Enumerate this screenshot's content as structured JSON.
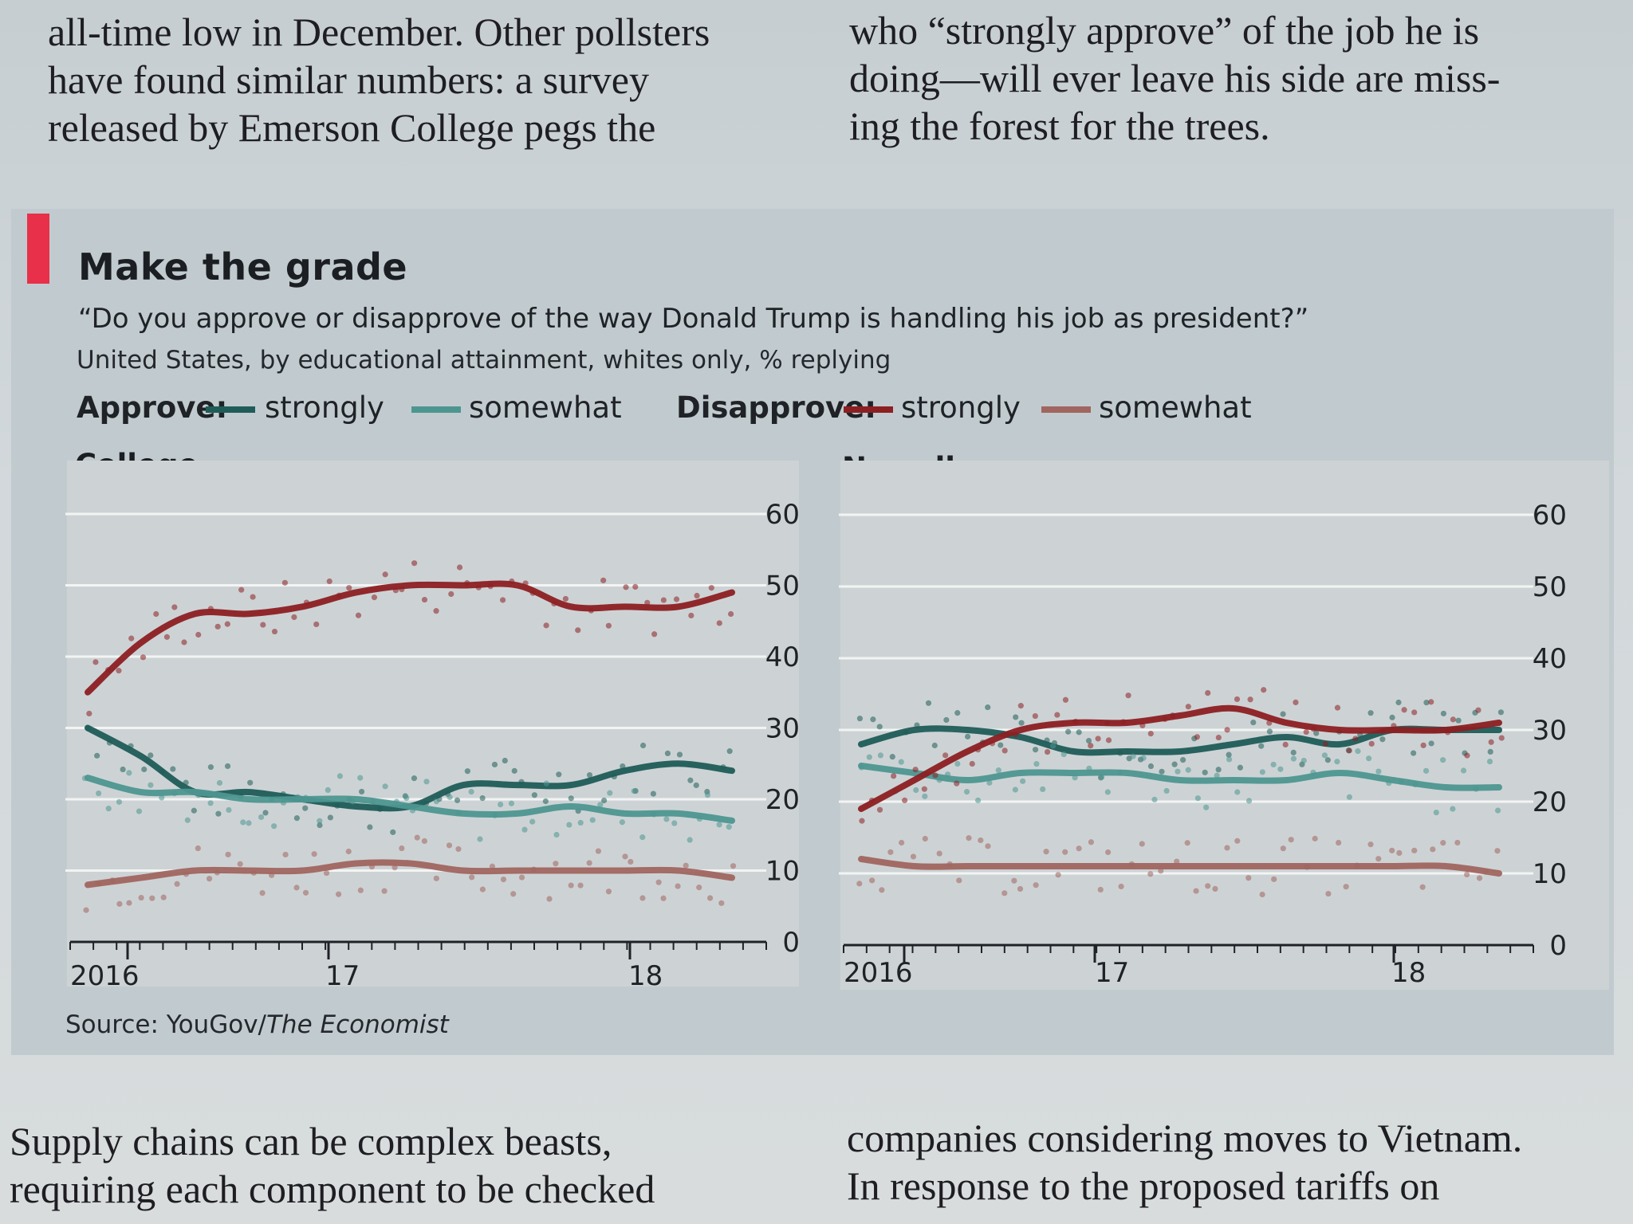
{
  "article": {
    "top_left": [
      "all-time low in December. Other pollsters",
      "have found similar numbers: a survey",
      "released by Emerson College pegs the"
    ],
    "top_right": [
      "who “strongly approve” of the job he is",
      "doing—will ever leave his side are miss-",
      "ing the forest for the trees."
    ],
    "bottom_left": [
      "Supply chains can be complex beasts,",
      "requiring each component to be checked"
    ],
    "bottom_right": [
      "companies considering moves to Vietnam.",
      "In response to the proposed tariffs on"
    ]
  },
  "figure": {
    "title": "Make the grade",
    "subtitle": "“Do you approve or disapprove of the way Donald Trump is handling his job as president?”",
    "note": "United States, by educational attainment, whites only, % replying",
    "legend": {
      "approve_label": "Approve:",
      "disapprove_label": "Disapprove:",
      "strongly": "strongly",
      "somewhat": "somewhat"
    },
    "source_prefix": "Source: YouGov/",
    "source_italic": "The Economist"
  },
  "colors": {
    "approve_strongly": "#1f5c57",
    "approve_somewhat": "#4d9690",
    "disapprove_strongly": "#8c1f22",
    "disapprove_somewhat": "#a0655f",
    "accent_bar": "#e8304a"
  },
  "chart_data": [
    {
      "type": "line",
      "panel": "College",
      "x_ticks": [
        "2016",
        "17",
        "18"
      ],
      "y_ticks": [
        0,
        10,
        20,
        30,
        40,
        50,
        60
      ],
      "ylim": [
        0,
        60
      ],
      "x": [
        2016.0,
        2016.2,
        2016.4,
        2016.6,
        2016.8,
        2017.0,
        2017.2,
        2017.4,
        2017.6,
        2017.8,
        2018.0,
        2018.2,
        2018.4
      ],
      "series": [
        {
          "name": "Approve strongly",
          "values": [
            30,
            26,
            21,
            21,
            20,
            19,
            19,
            22,
            22,
            22,
            24,
            25,
            24
          ]
        },
        {
          "name": "Approve somewhat",
          "values": [
            23,
            21,
            21,
            20,
            20,
            20,
            19,
            18,
            18,
            19,
            18,
            18,
            17
          ]
        },
        {
          "name": "Disapprove strongly",
          "values": [
            35,
            42,
            46,
            46,
            47,
            49,
            50,
            50,
            50,
            47,
            47,
            47,
            49
          ]
        },
        {
          "name": "Disapprove somewhat",
          "values": [
            8,
            9,
            10,
            10,
            10,
            11,
            11,
            10,
            10,
            10,
            10,
            10,
            9
          ]
        }
      ]
    },
    {
      "type": "line",
      "panel": "No college",
      "x_ticks": [
        "2016",
        "17",
        "18"
      ],
      "y_ticks": [
        0,
        10,
        20,
        30,
        40,
        50,
        60
      ],
      "ylim": [
        0,
        60
      ],
      "x": [
        2016.0,
        2016.2,
        2016.4,
        2016.6,
        2016.8,
        2017.0,
        2017.2,
        2017.4,
        2017.6,
        2017.8,
        2018.0,
        2018.2,
        2018.4
      ],
      "series": [
        {
          "name": "Approve strongly",
          "values": [
            28,
            30,
            30,
            29,
            27,
            27,
            27,
            28,
            29,
            28,
            30,
            30,
            30
          ]
        },
        {
          "name": "Approve somewhat",
          "values": [
            25,
            24,
            23,
            24,
            24,
            24,
            23,
            23,
            23,
            24,
            23,
            22,
            22
          ]
        },
        {
          "name": "Disapprove strongly",
          "values": [
            19,
            23,
            27,
            30,
            31,
            31,
            32,
            33,
            31,
            30,
            30,
            30,
            31
          ]
        },
        {
          "name": "Disapprove somewhat",
          "values": [
            12,
            11,
            11,
            11,
            11,
            11,
            11,
            11,
            11,
            11,
            11,
            11,
            10
          ]
        }
      ]
    }
  ]
}
